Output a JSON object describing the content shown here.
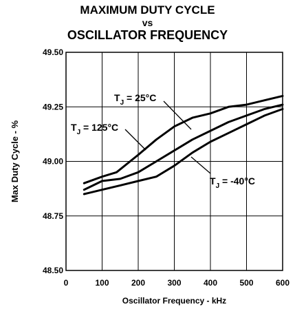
{
  "chart_data": {
    "type": "line",
    "title": [
      "MAXIMUM DUTY CYCLE",
      "vs",
      "OSCILLATOR FREQUENCY"
    ],
    "xlabel": "Oscillator Frequency - kHz",
    "ylabel": "Max Duty Cycle - %",
    "xlim": [
      0,
      600
    ],
    "ylim": [
      48.5,
      49.5
    ],
    "xticks": [
      0,
      100,
      200,
      300,
      400,
      500,
      600
    ],
    "yticks": [
      "48.50",
      "48.75",
      "49.00",
      "49.25",
      "49.50"
    ],
    "grid": true,
    "series": [
      {
        "name": "T_J = 125°C",
        "x": [
          50,
          100,
          140,
          200,
          250,
          300,
          350,
          400,
          450,
          500,
          550,
          600
        ],
        "y": [
          48.9,
          48.93,
          48.95,
          49.03,
          49.1,
          49.16,
          49.2,
          49.22,
          49.25,
          49.26,
          49.28,
          49.3
        ]
      },
      {
        "name": "T_J = 25°C",
        "x": [
          50,
          100,
          150,
          200,
          250,
          300,
          350,
          400,
          450,
          500,
          550,
          600
        ],
        "y": [
          48.87,
          48.91,
          48.92,
          48.95,
          49.0,
          49.05,
          49.1,
          49.14,
          49.18,
          49.21,
          49.24,
          49.26
        ]
      },
      {
        "name": "T_J = -40°C",
        "x": [
          50,
          100,
          150,
          200,
          250,
          300,
          350,
          400,
          450,
          500,
          550,
          600
        ],
        "y": [
          48.85,
          48.87,
          48.89,
          48.91,
          48.93,
          48.98,
          49.04,
          49.09,
          49.13,
          49.17,
          49.21,
          49.24
        ]
      }
    ],
    "annotations": [
      {
        "main": "T",
        "sub": "J",
        "rest": " = 25°C"
      },
      {
        "main": "T",
        "sub": "J",
        "rest": " = 125°C"
      },
      {
        "main": "T",
        "sub": "J",
        "rest": " = -40°C"
      }
    ]
  }
}
